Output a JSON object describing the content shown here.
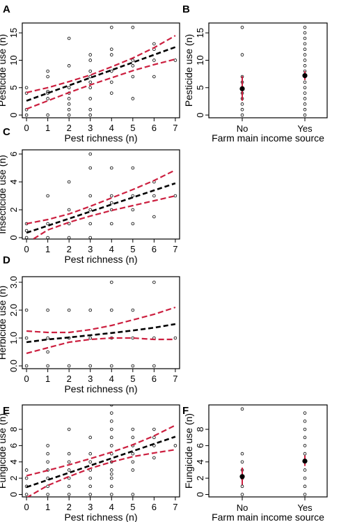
{
  "figure": {
    "panels": [
      "A",
      "B",
      "C",
      "D",
      "E",
      "F"
    ]
  },
  "colors": {
    "fit": "#000000",
    "ci": "#cc1f3f",
    "points": "#000000"
  },
  "chart_data": [
    {
      "id": "A",
      "type": "scatter",
      "label": "A",
      "xlabel": "Pest richness (n)",
      "ylabel": "Pesticide use (n)",
      "xlim": [
        -0.2,
        7.2
      ],
      "ylim": [
        -0.5,
        16.8
      ],
      "xticks": [
        0,
        1,
        2,
        3,
        4,
        5,
        6,
        7
      ],
      "yticks": [
        0,
        5,
        10,
        15
      ],
      "grid": false,
      "points": [
        [
          0,
          0
        ],
        [
          0,
          1
        ],
        [
          0,
          4
        ],
        [
          0,
          5
        ],
        [
          1,
          0
        ],
        [
          1,
          3
        ],
        [
          1,
          4
        ],
        [
          1,
          4.3
        ],
        [
          1,
          7
        ],
        [
          1,
          8
        ],
        [
          2,
          0
        ],
        [
          2,
          1
        ],
        [
          2,
          2
        ],
        [
          2,
          3
        ],
        [
          2,
          4
        ],
        [
          2,
          5
        ],
        [
          2,
          9
        ],
        [
          2,
          14
        ],
        [
          3,
          0
        ],
        [
          3,
          1
        ],
        [
          3,
          3
        ],
        [
          3,
          5
        ],
        [
          3,
          6
        ],
        [
          3,
          7
        ],
        [
          3,
          8
        ],
        [
          3,
          10
        ],
        [
          3,
          11
        ],
        [
          4,
          4
        ],
        [
          4,
          6
        ],
        [
          4,
          8
        ],
        [
          4,
          11
        ],
        [
          4,
          12
        ],
        [
          4,
          16
        ],
        [
          5,
          3
        ],
        [
          5,
          7
        ],
        [
          5,
          9
        ],
        [
          5,
          10
        ],
        [
          5,
          16
        ],
        [
          6,
          7
        ],
        [
          6,
          10
        ],
        [
          6,
          12
        ],
        [
          6,
          13
        ],
        [
          7,
          10
        ]
      ],
      "fit": [
        [
          0,
          2.6
        ],
        [
          7,
          12.4
        ]
      ],
      "ci_upper": [
        [
          0,
          4.1
        ],
        [
          1,
          5.0
        ],
        [
          2,
          6.1
        ],
        [
          3,
          7.3
        ],
        [
          4,
          8.8
        ],
        [
          5,
          10.4
        ],
        [
          6,
          12.3
        ],
        [
          7,
          14.5
        ]
      ],
      "ci_lower": [
        [
          0,
          1.1
        ],
        [
          1,
          2.6
        ],
        [
          2,
          4.1
        ],
        [
          3,
          5.5
        ],
        [
          4,
          6.8
        ],
        [
          5,
          8.1
        ],
        [
          6,
          9.2
        ],
        [
          7,
          10.2
        ]
      ]
    },
    {
      "id": "B",
      "type": "scatter",
      "label": "B",
      "xlabel": "Farm main income source",
      "ylabel": "Pesticide use (n)",
      "categories": [
        "No",
        "Yes"
      ],
      "ylim": [
        -0.5,
        16.8
      ],
      "yticks": [
        0,
        5,
        10,
        15
      ],
      "grid": false,
      "points": {
        "No": [
          0,
          1,
          2,
          3,
          4,
          5,
          6,
          7,
          11,
          16
        ],
        "Yes": [
          0,
          1,
          2,
          3,
          4,
          5,
          6,
          7,
          8,
          9,
          10,
          11,
          12,
          13,
          14,
          15,
          16
        ]
      },
      "means": [
        4.8,
        7.2
      ],
      "ci": [
        [
          2.6,
          7.1
        ],
        [
          6.4,
          8.0
        ]
      ]
    },
    {
      "id": "C",
      "type": "scatter",
      "label": "C",
      "xlabel": "Pest richness (n)",
      "ylabel": "Insecticide use (n)",
      "xlim": [
        -0.2,
        7.2
      ],
      "ylim": [
        -0.1,
        6.3
      ],
      "xticks": [
        0,
        1,
        2,
        3,
        4,
        5,
        6,
        7
      ],
      "yticks": [
        0,
        2,
        4,
        6
      ],
      "grid": false,
      "points": [
        [
          0,
          0
        ],
        [
          0,
          0.5
        ],
        [
          0,
          1
        ],
        [
          1,
          0
        ],
        [
          1,
          1
        ],
        [
          1,
          3
        ],
        [
          2,
          0
        ],
        [
          2,
          1
        ],
        [
          2,
          2
        ],
        [
          2,
          4
        ],
        [
          3,
          0
        ],
        [
          3,
          1
        ],
        [
          3,
          2
        ],
        [
          3,
          3
        ],
        [
          3,
          5
        ],
        [
          3,
          6
        ],
        [
          4,
          1
        ],
        [
          4,
          2
        ],
        [
          4,
          2.5
        ],
        [
          4,
          3
        ],
        [
          4,
          5
        ],
        [
          5,
          1
        ],
        [
          5,
          2
        ],
        [
          5,
          3
        ],
        [
          5,
          5
        ],
        [
          6,
          1.5
        ],
        [
          6,
          3
        ],
        [
          6,
          4
        ],
        [
          7,
          3
        ]
      ],
      "fit": [
        [
          0,
          0.35
        ],
        [
          7,
          3.9
        ]
      ],
      "ci_upper": [
        [
          0,
          1.0
        ],
        [
          1,
          1.3
        ],
        [
          2,
          1.7
        ],
        [
          3,
          2.25
        ],
        [
          4,
          2.85
        ],
        [
          5,
          3.45
        ],
        [
          6,
          4.1
        ],
        [
          7,
          4.85
        ]
      ],
      "ci_lower": [
        [
          0,
          -0.4
        ],
        [
          1,
          0.55
        ],
        [
          2,
          1.1
        ],
        [
          3,
          1.55
        ],
        [
          4,
          1.95
        ],
        [
          5,
          2.3
        ],
        [
          6,
          2.65
        ],
        [
          7,
          3.0
        ]
      ]
    },
    {
      "id": "D",
      "type": "scatter",
      "label": "D",
      "xlabel": "Pest richness (n)",
      "ylabel": "Herbicide use (n)",
      "xlim": [
        -0.2,
        7.2
      ],
      "ylim": [
        -0.1,
        3.2
      ],
      "xticks": [
        0,
        1,
        2,
        3,
        4,
        5,
        6,
        7
      ],
      "yticks": [
        0.0,
        1.0,
        2.0,
        3.0
      ],
      "ytick_labels": [
        "0.0",
        "1.0",
        "2.0",
        "3.0"
      ],
      "grid": false,
      "points": [
        [
          0,
          0
        ],
        [
          0,
          1
        ],
        [
          0,
          2
        ],
        [
          1,
          0
        ],
        [
          1,
          0.5
        ],
        [
          1,
          1
        ],
        [
          1,
          2
        ],
        [
          2,
          0
        ],
        [
          2,
          1
        ],
        [
          2,
          2
        ],
        [
          3,
          0
        ],
        [
          3,
          1
        ],
        [
          3,
          2
        ],
        [
          4,
          0
        ],
        [
          4,
          1
        ],
        [
          4,
          2
        ],
        [
          4,
          3
        ],
        [
          5,
          0
        ],
        [
          5,
          1
        ],
        [
          5,
          2
        ],
        [
          6,
          0
        ],
        [
          6,
          1
        ],
        [
          6,
          3
        ],
        [
          7,
          1
        ]
      ],
      "fit": [
        [
          0,
          0.85
        ],
        [
          1,
          0.95
        ],
        [
          2,
          1.02
        ],
        [
          3,
          1.1
        ],
        [
          4,
          1.18
        ],
        [
          5,
          1.27
        ],
        [
          6,
          1.37
        ],
        [
          7,
          1.5
        ]
      ],
      "ci_upper": [
        [
          0,
          1.25
        ],
        [
          1,
          1.2
        ],
        [
          2,
          1.2
        ],
        [
          3,
          1.3
        ],
        [
          4,
          1.45
        ],
        [
          5,
          1.65
        ],
        [
          6,
          1.85
        ],
        [
          7,
          2.1
        ]
      ],
      "ci_lower": [
        [
          0,
          0.45
        ],
        [
          1,
          0.65
        ],
        [
          2,
          0.85
        ],
        [
          3,
          0.95
        ],
        [
          4,
          1.0
        ],
        [
          5,
          1.0
        ],
        [
          6,
          0.95
        ],
        [
          7,
          0.95
        ]
      ]
    },
    {
      "id": "E",
      "type": "scatter",
      "label": "E",
      "xlabel": "Pest richness (n)",
      "ylabel": "Fungicide use (n)",
      "xlim": [
        -0.2,
        7.2
      ],
      "ylim": [
        -0.3,
        11
      ],
      "xticks": [
        0,
        1,
        2,
        3,
        4,
        5,
        6,
        7
      ],
      "yticks": [
        0,
        2,
        4,
        6,
        8
      ],
      "grid": false,
      "points": [
        [
          0,
          0
        ],
        [
          0,
          1
        ],
        [
          0,
          2
        ],
        [
          0,
          3
        ],
        [
          1,
          0
        ],
        [
          1,
          1
        ],
        [
          1,
          2
        ],
        [
          1,
          3
        ],
        [
          1,
          4
        ],
        [
          1,
          5
        ],
        [
          1,
          6
        ],
        [
          2,
          0
        ],
        [
          2,
          1
        ],
        [
          2,
          2
        ],
        [
          2,
          3
        ],
        [
          2,
          4
        ],
        [
          2,
          5
        ],
        [
          2,
          8
        ],
        [
          3,
          0
        ],
        [
          3,
          1
        ],
        [
          3,
          2
        ],
        [
          3,
          3
        ],
        [
          3,
          4
        ],
        [
          3,
          5
        ],
        [
          3,
          7
        ],
        [
          4,
          0
        ],
        [
          4,
          1
        ],
        [
          4,
          2
        ],
        [
          4,
          2.5
        ],
        [
          4,
          3
        ],
        [
          4,
          4
        ],
        [
          4,
          5
        ],
        [
          4,
          6
        ],
        [
          4,
          7
        ],
        [
          4,
          8
        ],
        [
          4,
          9
        ],
        [
          4,
          10
        ],
        [
          4,
          11
        ],
        [
          5,
          0
        ],
        [
          5,
          3
        ],
        [
          5,
          4
        ],
        [
          5,
          5
        ],
        [
          5,
          6
        ],
        [
          5,
          7
        ],
        [
          5,
          8
        ],
        [
          6,
          4.5
        ],
        [
          6,
          6
        ],
        [
          6,
          7
        ],
        [
          6,
          8
        ],
        [
          7,
          6
        ]
      ],
      "fit": [
        [
          0,
          0.9
        ],
        [
          7,
          7.1
        ]
      ],
      "ci_upper": [
        [
          0,
          2.3
        ],
        [
          1,
          2.95
        ],
        [
          2,
          3.65
        ],
        [
          3,
          4.4
        ],
        [
          4,
          5.2
        ],
        [
          5,
          6.1
        ],
        [
          6,
          7.2
        ],
        [
          7,
          8.5
        ]
      ],
      "ci_lower": [
        [
          0,
          -0.4
        ],
        [
          1,
          1.1
        ],
        [
          2,
          2.2
        ],
        [
          3,
          3.2
        ],
        [
          4,
          4.0
        ],
        [
          5,
          4.65
        ],
        [
          6,
          5.1
        ],
        [
          7,
          5.5
        ]
      ]
    },
    {
      "id": "F",
      "type": "scatter",
      "label": "F",
      "xlabel": "Farm main income source",
      "ylabel": "Fungicide use (n)",
      "categories": [
        "No",
        "Yes"
      ],
      "ylim": [
        -0.3,
        11
      ],
      "yticks": [
        0,
        2,
        4,
        6,
        8
      ],
      "grid": false,
      "points": {
        "No": [
          0,
          1,
          2,
          3,
          4,
          5,
          10.5
        ],
        "Yes": [
          0,
          1,
          2,
          3,
          4,
          5,
          6,
          7,
          8,
          9,
          10
        ]
      },
      "means": [
        2.2,
        4.1
      ],
      "ci": [
        [
          1.2,
          3.3
        ],
        [
          3.5,
          4.8
        ]
      ]
    }
  ]
}
